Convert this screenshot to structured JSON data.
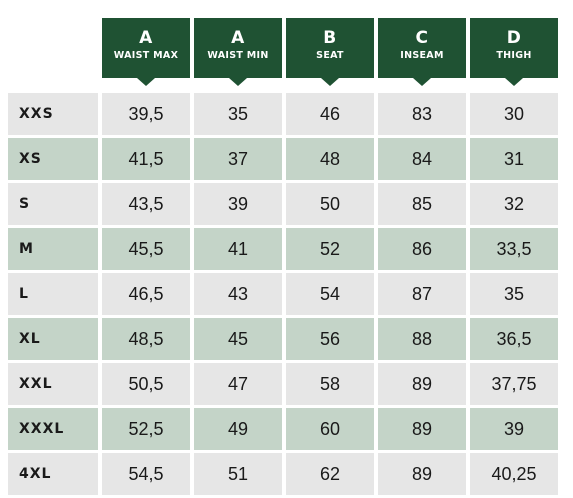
{
  "columns": [
    {
      "letter": "A",
      "label": "WAIST MAX"
    },
    {
      "letter": "A",
      "label": "WAIST MIN"
    },
    {
      "letter": "B",
      "label": "SEAT"
    },
    {
      "letter": "C",
      "label": "INSEAM"
    },
    {
      "letter": "D",
      "label": "THIGH"
    }
  ],
  "rows": [
    {
      "size": "XXS",
      "values": [
        "39,5",
        "35",
        "46",
        "83",
        "30"
      ]
    },
    {
      "size": "XS",
      "values": [
        "41,5",
        "37",
        "48",
        "84",
        "31"
      ]
    },
    {
      "size": "S",
      "values": [
        "43,5",
        "39",
        "50",
        "85",
        "32"
      ]
    },
    {
      "size": "M",
      "values": [
        "45,5",
        "41",
        "52",
        "86",
        "33,5"
      ]
    },
    {
      "size": "L",
      "values": [
        "46,5",
        "43",
        "54",
        "87",
        "35"
      ]
    },
    {
      "size": "XL",
      "values": [
        "48,5",
        "45",
        "56",
        "88",
        "36,5"
      ]
    },
    {
      "size": "XXL",
      "values": [
        "50,5",
        "47",
        "58",
        "89",
        "37,75"
      ]
    },
    {
      "size": "XXXL",
      "values": [
        "52,5",
        "49",
        "60",
        "89",
        "39"
      ]
    },
    {
      "size": "4XL",
      "values": [
        "54,5",
        "51",
        "62",
        "89",
        "40,25"
      ]
    }
  ],
  "colors": {
    "header_bg": "#1f5233",
    "row_light": "#e6e6e6",
    "row_green": "#c4d4c8"
  }
}
